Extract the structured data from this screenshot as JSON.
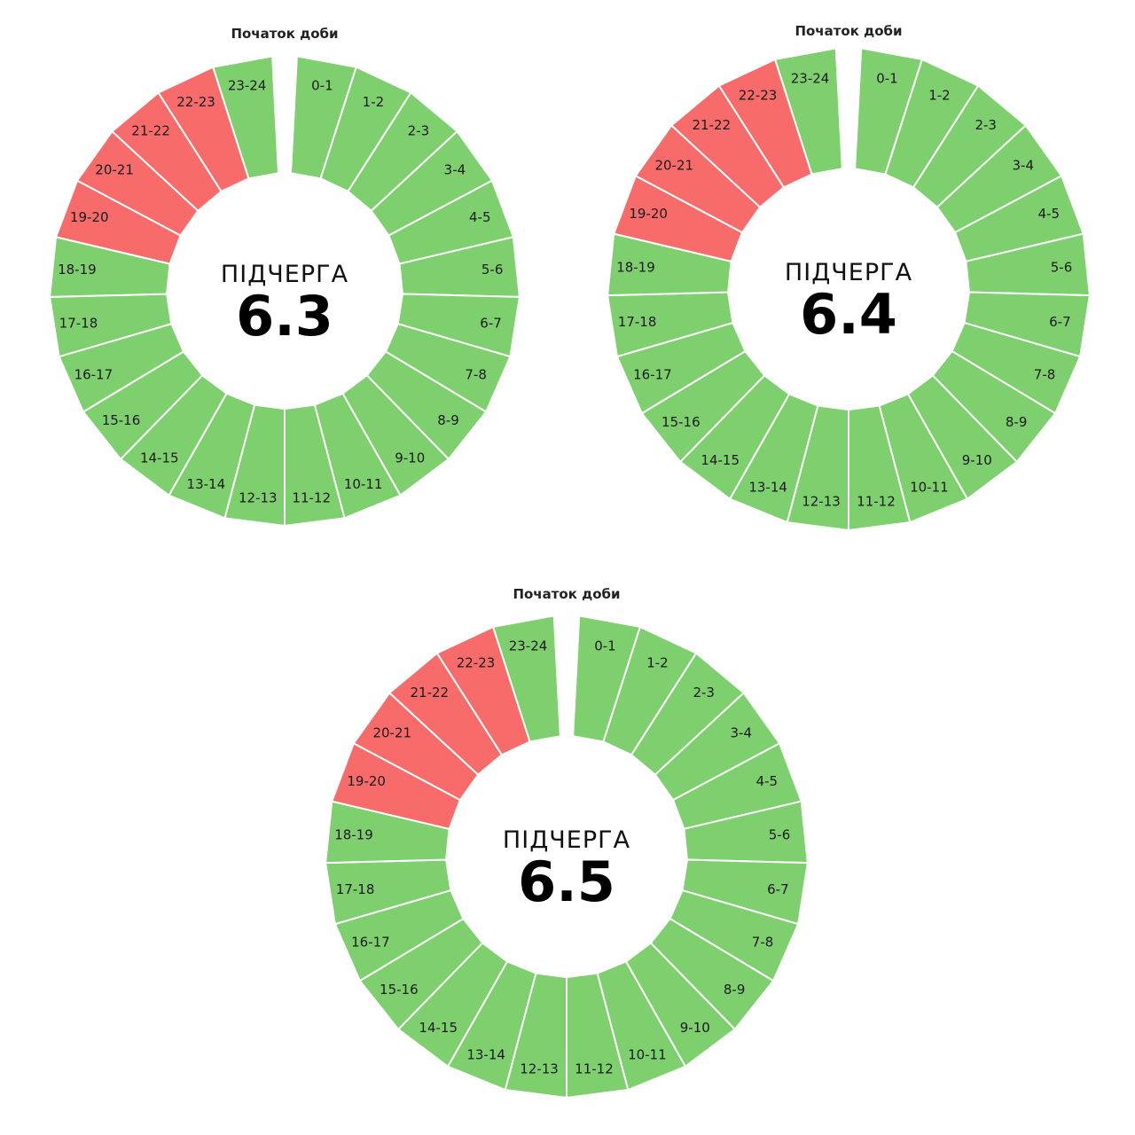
{
  "colors": {
    "available": "#7ecf6e",
    "outage": "#f76b6b",
    "gap_line": "#ffffff"
  },
  "chart_data": [
    {
      "type": "pie",
      "start_label": "Початок доби",
      "center_title": "ПІДЧЕРГА",
      "center_value": "6.3",
      "segments": [
        "0-1",
        "1-2",
        "2-3",
        "3-4",
        "4-5",
        "5-6",
        "6-7",
        "7-8",
        "8-9",
        "9-10",
        "10-11",
        "11-12",
        "12-13",
        "13-14",
        "14-15",
        "15-16",
        "16-17",
        "17-18",
        "18-19",
        "19-20",
        "20-21",
        "21-22",
        "22-23",
        "23-24"
      ],
      "outage_segments": [
        "19-20",
        "20-21",
        "21-22",
        "22-23"
      ]
    },
    {
      "type": "pie",
      "start_label": "Початок доби",
      "center_title": "ПІДЧЕРГА",
      "center_value": "6.4",
      "segments": [
        "0-1",
        "1-2",
        "2-3",
        "3-4",
        "4-5",
        "5-6",
        "6-7",
        "7-8",
        "8-9",
        "9-10",
        "10-11",
        "11-12",
        "12-13",
        "13-14",
        "14-15",
        "15-16",
        "16-17",
        "17-18",
        "18-19",
        "19-20",
        "20-21",
        "21-22",
        "22-23",
        "23-24"
      ],
      "outage_segments": [
        "19-20",
        "20-21",
        "21-22",
        "22-23"
      ]
    },
    {
      "type": "pie",
      "start_label": "Початок доби",
      "center_title": "ПІДЧЕРГА",
      "center_value": "6.5",
      "segments": [
        "0-1",
        "1-2",
        "2-3",
        "3-4",
        "4-5",
        "5-6",
        "6-7",
        "7-8",
        "8-9",
        "9-10",
        "10-11",
        "11-12",
        "12-13",
        "13-14",
        "14-15",
        "15-16",
        "16-17",
        "17-18",
        "18-19",
        "19-20",
        "20-21",
        "21-22",
        "22-23",
        "23-24"
      ],
      "outage_segments": [
        "19-20",
        "20-21",
        "21-22",
        "22-23"
      ]
    }
  ]
}
